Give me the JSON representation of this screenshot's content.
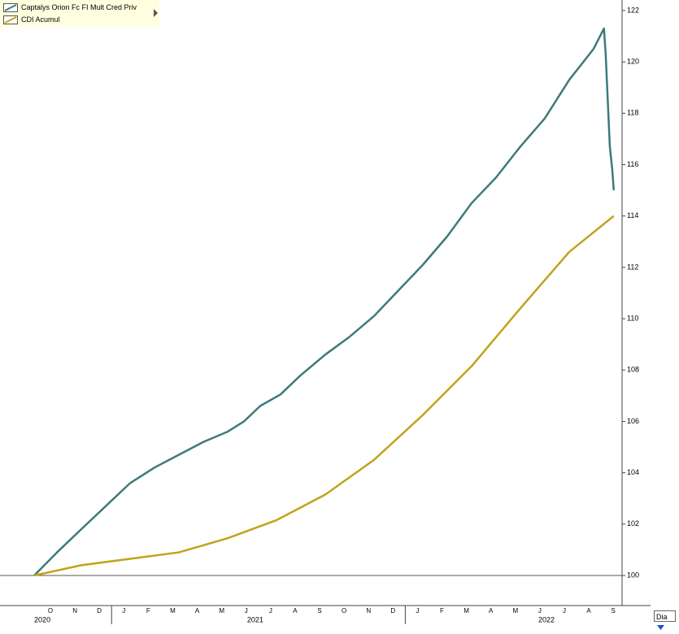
{
  "chart_data": {
    "type": "line",
    "series": [
      {
        "name": "Captalys Orion Fc FI Mult Cred Priv",
        "color": "#3d7a7a",
        "x": [
          8.84,
          9.77,
          10.76,
          11.76,
          12.76,
          13.75,
          14.75,
          15.75,
          16.74,
          17.41,
          18.07,
          18.9,
          19.73,
          20.73,
          21.73,
          22.72,
          23.72,
          24.72,
          25.71,
          26.71,
          27.71,
          28.7,
          29.7,
          30.7,
          31.69,
          32.12,
          32.19,
          32.36,
          32.46,
          32.52
        ],
        "values": [
          100,
          100.9,
          101.8,
          102.7,
          103.6,
          104.2,
          104.7,
          105.2,
          105.6,
          106.0,
          106.6,
          107.05,
          107.8,
          108.6,
          109.3,
          110.1,
          111.1,
          112.1,
          113.2,
          114.5,
          115.5,
          116.7,
          117.8,
          119.3,
          120.5,
          121.3,
          120.3,
          116.7,
          115.8,
          115.0
        ]
      },
      {
        "name": "CDI Acumul",
        "color": "#c2a31a",
        "x": [
          8.84,
          10.76,
          12.76,
          14.75,
          16.74,
          18.73,
          20.73,
          22.72,
          24.72,
          26.71,
          28.7,
          30.7,
          32.52
        ],
        "values": [
          100,
          100.4,
          100.65,
          100.9,
          101.45,
          102.15,
          103.15,
          104.5,
          106.25,
          108.15,
          110.4,
          112.6,
          114.0
        ]
      }
    ],
    "xlim": [
      7.44,
      32.86
    ],
    "xticks": [
      {
        "value": 9.5,
        "label": "O"
      },
      {
        "value": 10.5,
        "label": "N"
      },
      {
        "value": 11.5,
        "label": "D"
      },
      {
        "value": 12.5,
        "label": "J"
      },
      {
        "value": 13.5,
        "label": "F"
      },
      {
        "value": 14.5,
        "label": "M"
      },
      {
        "value": 15.5,
        "label": "A"
      },
      {
        "value": 16.5,
        "label": "M"
      },
      {
        "value": 17.5,
        "label": "J"
      },
      {
        "value": 18.5,
        "label": "J"
      },
      {
        "value": 19.5,
        "label": "A"
      },
      {
        "value": 20.5,
        "label": "S"
      },
      {
        "value": 21.5,
        "label": "O"
      },
      {
        "value": 22.5,
        "label": "N"
      },
      {
        "value": 23.5,
        "label": "D"
      },
      {
        "value": 24.5,
        "label": "J"
      },
      {
        "value": 25.5,
        "label": "F"
      },
      {
        "value": 26.5,
        "label": "M"
      },
      {
        "value": 27.5,
        "label": "A"
      },
      {
        "value": 28.5,
        "label": "M"
      },
      {
        "value": 29.5,
        "label": "J"
      },
      {
        "value": 30.5,
        "label": "J"
      },
      {
        "value": 31.5,
        "label": "A"
      },
      {
        "value": 32.5,
        "label": "S"
      }
    ],
    "year_ticks": [
      {
        "value": 9.17,
        "label": "2020"
      },
      {
        "value": 17.87,
        "label": "2021"
      },
      {
        "value": 29.77,
        "label": "2022"
      }
    ],
    "year_dividers": [
      12,
      24
    ],
    "ylim": [
      100,
      122
    ],
    "yticks": [
      100,
      102,
      104,
      106,
      108,
      110,
      112,
      114,
      116,
      118,
      120,
      122
    ],
    "baseline": 100,
    "period": "Dia"
  }
}
